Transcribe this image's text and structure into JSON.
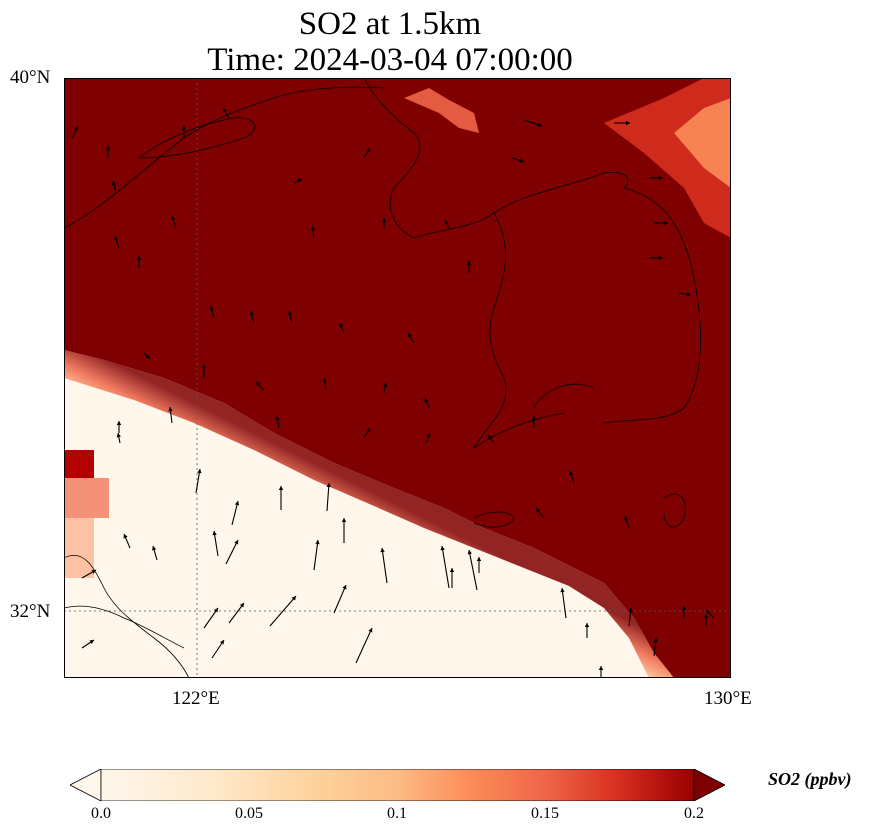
{
  "title": {
    "line1": "SO2 at 1.5km",
    "line2": "Time: 2024-03-04 07:00:00"
  },
  "axes": {
    "lat_ticks": [
      "40°N",
      "32°N"
    ],
    "lon_ticks": [
      "122°E",
      "130°E"
    ],
    "lon_range": [
      120,
      130
    ],
    "lat_range": [
      31,
      40
    ]
  },
  "colorbar": {
    "label": "SO2 (ppbv)",
    "ticks": [
      "0.0",
      "0.05",
      "0.1",
      "0.15",
      "0.2"
    ],
    "range": [
      0,
      0.2
    ],
    "colormap": "OrRd",
    "extend": "both"
  },
  "colors": {
    "high": "#7f0000",
    "low": "#fff7ec",
    "mid": "#fdbb84",
    "vector": "#000000",
    "coast": "#000000"
  },
  "map_content": {
    "field": "SO2 concentration",
    "high_region": "north-east of front (Yellow Sea, Korea, Bohai)",
    "low_region": "south-west of front (East China Sea, Yangtze delta)",
    "vectors": "wind vectors"
  }
}
